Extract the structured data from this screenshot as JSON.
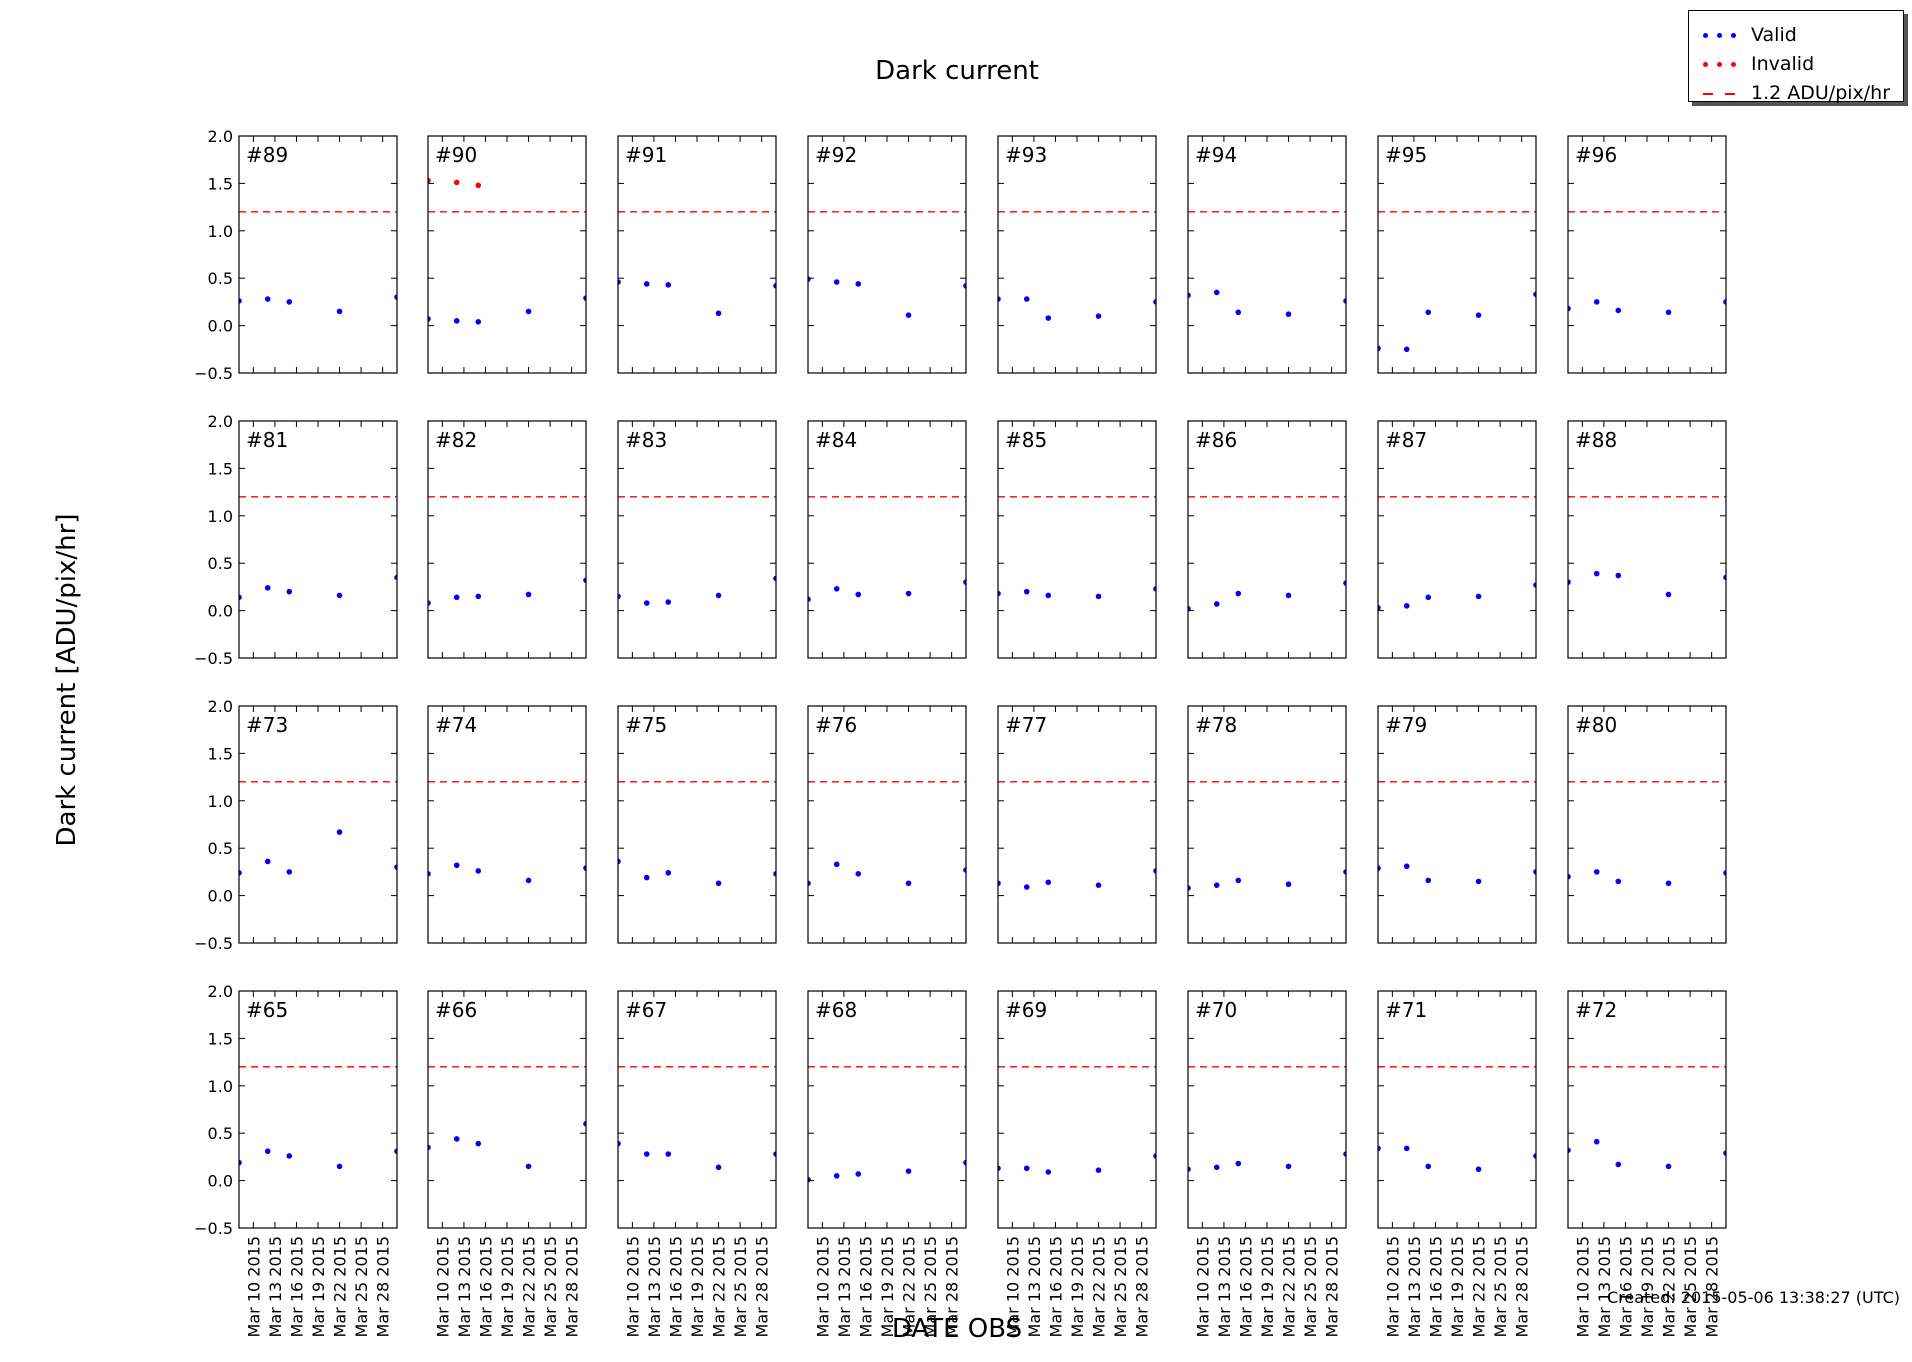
{
  "figure": {
    "title": "Dark current",
    "ylabel": "Dark current [ADU/pix/hr]",
    "xlabel": "DATE OBS",
    "footer": "Created: 2015-05-06 13:38:27 (UTC)"
  },
  "legend": {
    "placement": "top-right",
    "items": [
      {
        "label": "Valid",
        "style": "dots",
        "color": "#0000ff"
      },
      {
        "label": "Invalid",
        "style": "dots",
        "color": "#ff0000"
      },
      {
        "label": "1.2 ADU/pix/hr",
        "style": "dash",
        "color": "#ff0000"
      }
    ]
  },
  "colors": {
    "valid": "#0000ff",
    "invalid": "#ff0000",
    "threshold": "#ff0000"
  },
  "chart_data": {
    "type": "scatter",
    "title": "Dark current",
    "xlabel": "DATE OBS",
    "ylabel": "Dark current [ADU/pix/hr]",
    "ylim": [
      -0.5,
      2.0
    ],
    "yticks": [
      2.0,
      1.5,
      1.0,
      0.5,
      0.0,
      -0.5
    ],
    "ytick_labels": [
      "2.0",
      "1.5",
      "1.0",
      "0.5",
      "0.0",
      "−0.5"
    ],
    "xlim": [
      "2015-03-08",
      "2015-03-30"
    ],
    "xticks": [
      "2015-03-10",
      "2015-03-13",
      "2015-03-16",
      "2015-03-19",
      "2015-03-22",
      "2015-03-25",
      "2015-03-28"
    ],
    "xtick_labels": [
      "Mar 10 2015",
      "Mar 13 2015",
      "Mar 16 2015",
      "Mar 19 2015",
      "Mar 22 2015",
      "Mar 25 2015",
      "Mar 28 2015"
    ],
    "threshold": 1.2,
    "grid": false,
    "dates": [
      "2015-03-08",
      "2015-03-12",
      "2015-03-15",
      "2015-03-22",
      "2015-03-30"
    ],
    "panels": [
      {
        "label": "#89",
        "valid": [
          0.26,
          0.28,
          0.25,
          0.15,
          0.3
        ]
      },
      {
        "label": "#90",
        "valid": [
          0.07,
          0.05,
          0.04,
          0.15,
          0.29
        ],
        "invalid": [
          [
            0,
            1.53
          ],
          [
            1,
            1.51
          ],
          [
            2,
            1.48
          ]
        ]
      },
      {
        "label": "#91",
        "valid": [
          0.46,
          0.44,
          0.43,
          0.13,
          0.42
        ]
      },
      {
        "label": "#92",
        "valid": [
          0.49,
          0.46,
          0.44,
          0.11,
          0.42
        ]
      },
      {
        "label": "#93",
        "valid": [
          0.28,
          0.28,
          0.08,
          0.1,
          0.25
        ]
      },
      {
        "label": "#94",
        "valid": [
          0.32,
          0.35,
          0.14,
          0.12,
          0.26
        ]
      },
      {
        "label": "#95",
        "valid": [
          -0.24,
          -0.25,
          0.14,
          0.11,
          0.33
        ]
      },
      {
        "label": "#96",
        "valid": [
          0.18,
          0.25,
          0.16,
          0.14,
          0.25
        ]
      },
      {
        "label": "#81",
        "valid": [
          0.14,
          0.24,
          0.2,
          0.16,
          0.35
        ]
      },
      {
        "label": "#82",
        "valid": [
          0.08,
          0.14,
          0.15,
          0.17,
          0.32
        ]
      },
      {
        "label": "#83",
        "valid": [
          0.15,
          0.08,
          0.09,
          0.16,
          0.34
        ]
      },
      {
        "label": "#84",
        "valid": [
          0.12,
          0.23,
          0.17,
          0.18,
          0.3
        ]
      },
      {
        "label": "#85",
        "valid": [
          0.18,
          0.2,
          0.16,
          0.15,
          0.23
        ]
      },
      {
        "label": "#86",
        "valid": [
          0.02,
          0.07,
          0.18,
          0.16,
          0.29
        ]
      },
      {
        "label": "#87",
        "valid": [
          0.03,
          0.05,
          0.14,
          0.15,
          0.27
        ]
      },
      {
        "label": "#88",
        "valid": [
          0.3,
          0.39,
          0.37,
          0.17,
          0.35
        ]
      },
      {
        "label": "#73",
        "valid": [
          0.24,
          0.36,
          0.25,
          0.67,
          0.3
        ]
      },
      {
        "label": "#74",
        "valid": [
          0.23,
          0.32,
          0.26,
          0.16,
          0.29
        ]
      },
      {
        "label": "#75",
        "valid": [
          0.36,
          0.19,
          0.24,
          0.13,
          0.23
        ]
      },
      {
        "label": "#76",
        "valid": [
          0.13,
          0.33,
          0.23,
          0.13,
          0.27
        ]
      },
      {
        "label": "#77",
        "valid": [
          0.13,
          0.09,
          0.14,
          0.11,
          0.26
        ]
      },
      {
        "label": "#78",
        "valid": [
          0.08,
          0.11,
          0.16,
          0.12,
          0.25
        ]
      },
      {
        "label": "#79",
        "valid": [
          0.29,
          0.31,
          0.16,
          0.15,
          0.25
        ]
      },
      {
        "label": "#80",
        "valid": [
          0.2,
          0.25,
          0.15,
          0.13,
          0.24
        ]
      },
      {
        "label": "#65",
        "valid": [
          0.19,
          0.31,
          0.26,
          0.15,
          0.31
        ]
      },
      {
        "label": "#66",
        "valid": [
          0.35,
          0.44,
          0.39,
          0.15,
          0.6
        ]
      },
      {
        "label": "#67",
        "valid": [
          0.39,
          0.28,
          0.28,
          0.14,
          0.28
        ]
      },
      {
        "label": "#68",
        "valid": [
          0.01,
          0.05,
          0.07,
          0.1,
          0.19
        ]
      },
      {
        "label": "#69",
        "valid": [
          0.13,
          0.13,
          0.09,
          0.11,
          0.26
        ]
      },
      {
        "label": "#70",
        "valid": [
          0.12,
          0.14,
          0.18,
          0.15,
          0.28
        ]
      },
      {
        "label": "#71",
        "valid": [
          0.34,
          0.34,
          0.15,
          0.12,
          0.26
        ]
      },
      {
        "label": "#72",
        "valid": [
          0.32,
          0.41,
          0.17,
          0.15,
          0.29
        ]
      }
    ]
  }
}
